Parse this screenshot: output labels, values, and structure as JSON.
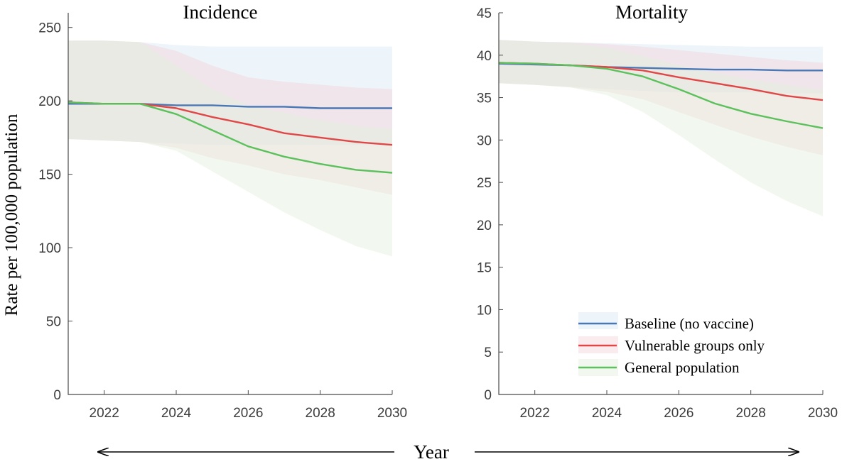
{
  "figure": {
    "ylabel": "Rate per 100,000 population",
    "xlabel": "Year"
  },
  "legend": [
    {
      "name": "Baseline (no vaccine)",
      "color": "#4a78b5"
    },
    {
      "name": "Vulnerable groups only",
      "color": "#e04848"
    },
    {
      "name": "General population",
      "color": "#5cc05c"
    }
  ],
  "chart_data": [
    {
      "type": "line",
      "title": "Incidence",
      "xlim": [
        2021,
        2030
      ],
      "ylim": [
        0,
        260
      ],
      "xticks": [
        2022,
        2024,
        2026,
        2028,
        2030
      ],
      "yticks": [
        0,
        50,
        100,
        150,
        200,
        250
      ],
      "x": [
        2021,
        2022,
        2023,
        2024,
        2025,
        2026,
        2027,
        2028,
        2029,
        2030
      ],
      "series": [
        {
          "name": "Baseline (no vaccine)",
          "color": "#4a78b5",
          "band_color": "#d6e6f4",
          "values": [
            198,
            198,
            198,
            197,
            197,
            196,
            196,
            195,
            195,
            195
          ],
          "lower": [
            174,
            173,
            172,
            171,
            170,
            170,
            170,
            170,
            170,
            170
          ],
          "upper": [
            241,
            241,
            240,
            238,
            237,
            237,
            237,
            237,
            237,
            237
          ]
        },
        {
          "name": "Vulnerable groups only",
          "color": "#e04848",
          "band_color": "#f2d2da",
          "values": [
            199,
            198,
            198,
            195,
            189,
            184,
            178,
            175,
            172,
            170
          ],
          "lower": [
            174,
            173,
            172,
            168,
            161,
            156,
            150,
            146,
            141,
            136
          ],
          "upper": [
            241,
            241,
            240,
            234,
            224,
            216,
            213,
            211,
            209,
            208
          ]
        },
        {
          "name": "General population",
          "color": "#5cc05c",
          "band_color": "#e2efdc",
          "values": [
            199,
            198,
            198,
            191,
            180,
            169,
            162,
            157,
            153,
            151
          ],
          "lower": [
            174,
            173,
            172,
            166,
            152,
            138,
            124,
            112,
            101,
            94
          ],
          "upper": [
            241,
            241,
            240,
            224,
            208,
            197,
            192,
            187,
            183,
            181
          ]
        }
      ]
    },
    {
      "type": "line",
      "title": "Mortality",
      "xlim": [
        2021,
        2030
      ],
      "ylim": [
        0,
        45
      ],
      "xticks": [
        2022,
        2024,
        2026,
        2028,
        2030
      ],
      "yticks": [
        0,
        5,
        10,
        15,
        20,
        25,
        30,
        35,
        40,
        45
      ],
      "x": [
        2021,
        2022,
        2023,
        2024,
        2025,
        2026,
        2027,
        2028,
        2029,
        2030
      ],
      "series": [
        {
          "name": "Baseline (no vaccine)",
          "color": "#4a78b5",
          "band_color": "#d6e6f4",
          "values": [
            39.0,
            38.9,
            38.8,
            38.6,
            38.5,
            38.4,
            38.3,
            38.3,
            38.2,
            38.2
          ],
          "lower": [
            36.7,
            36.5,
            36.3,
            36.0,
            35.8,
            35.6,
            35.6,
            35.6,
            35.5,
            35.5
          ],
          "upper": [
            41.8,
            41.6,
            41.5,
            41.4,
            41.3,
            41.2,
            41.1,
            41.0,
            41.0,
            41.0
          ]
        },
        {
          "name": "Vulnerable groups only",
          "color": "#e04848",
          "band_color": "#f2d2da",
          "values": [
            39.1,
            39.0,
            38.8,
            38.6,
            38.2,
            37.4,
            36.7,
            36.0,
            35.2,
            34.7
          ],
          "lower": [
            36.7,
            36.5,
            36.2,
            35.7,
            34.8,
            33.3,
            31.8,
            30.4,
            29.2,
            28.2
          ],
          "upper": [
            41.8,
            41.6,
            41.5,
            41.3,
            41.0,
            40.6,
            40.2,
            39.8,
            39.4,
            39.1
          ]
        },
        {
          "name": "General population",
          "color": "#5cc05c",
          "band_color": "#e2efdc",
          "values": [
            39.1,
            39.0,
            38.8,
            38.4,
            37.5,
            36.0,
            34.3,
            33.1,
            32.2,
            31.4
          ],
          "lower": [
            36.7,
            36.5,
            36.2,
            35.3,
            33.3,
            30.6,
            27.7,
            25.0,
            22.8,
            21.0
          ],
          "upper": [
            41.8,
            41.6,
            41.4,
            40.9,
            39.9,
            38.8,
            37.9,
            37.1,
            36.5,
            35.9
          ]
        }
      ]
    }
  ]
}
